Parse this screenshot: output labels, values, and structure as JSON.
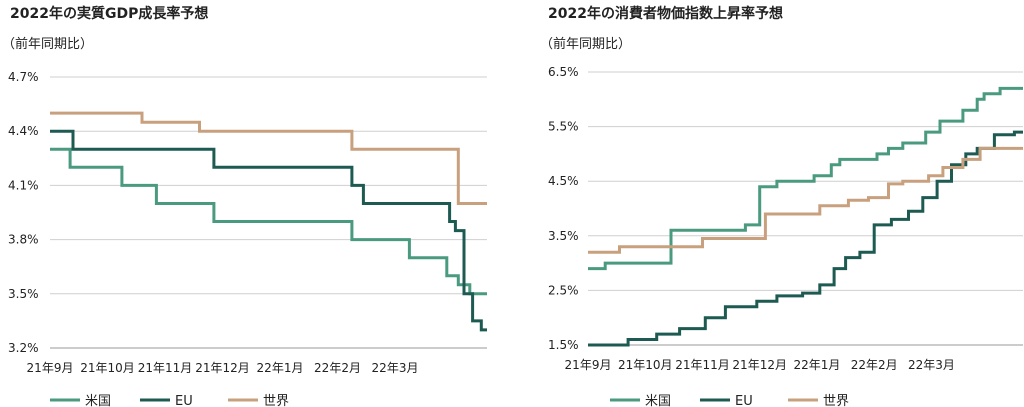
{
  "colors": {
    "us": "#4a9a80",
    "eu": "#1c5a52",
    "world": "#c8a07e",
    "grid": "#cfcfcf",
    "text": "#222222"
  },
  "chart_data": [
    {
      "type": "line",
      "title": "2022年の実質GDP成長率予想",
      "subtitle": "（前年同期比）",
      "x_tick_labels": [
        "21年9月",
        "21年10月",
        "21年11月",
        "21年12月",
        "22年1月",
        "22年2月",
        "22年3月"
      ],
      "y_ticks": [
        "3.2%",
        "3.5%",
        "3.8%",
        "4.1%",
        "4.4%",
        "4.7%"
      ],
      "ylim": [
        3.2,
        4.7
      ],
      "xlim": [
        0,
        7.6
      ],
      "grid": "horizontal",
      "legend_position": "bottom-left",
      "series": [
        {
          "name": "米国",
          "color_key": "us",
          "x": [
            0,
            0.35,
            0.35,
            1.25,
            1.25,
            1.85,
            1.85,
            2.85,
            2.85,
            5.25,
            5.25,
            6.25,
            6.25,
            6.9,
            6.9,
            7.1,
            7.1,
            7.3,
            7.3,
            7.6
          ],
          "y": [
            4.3,
            4.3,
            4.2,
            4.2,
            4.1,
            4.1,
            4.0,
            4.0,
            3.9,
            3.9,
            3.8,
            3.8,
            3.7,
            3.7,
            3.6,
            3.6,
            3.55,
            3.55,
            3.5,
            3.5
          ]
        },
        {
          "name": "EU",
          "color_key": "eu",
          "x": [
            0,
            0.4,
            0.4,
            2.85,
            2.85,
            5.25,
            5.25,
            5.45,
            5.45,
            6.95,
            6.95,
            7.05,
            7.05,
            7.2,
            7.2,
            7.35,
            7.35,
            7.5,
            7.5,
            7.6
          ],
          "y": [
            4.4,
            4.4,
            4.3,
            4.3,
            4.2,
            4.2,
            4.1,
            4.1,
            4.0,
            4.0,
            3.9,
            3.9,
            3.85,
            3.85,
            3.5,
            3.5,
            3.35,
            3.35,
            3.3,
            3.3
          ]
        },
        {
          "name": "世界",
          "color_key": "world",
          "x": [
            0,
            1.6,
            1.6,
            2.6,
            2.6,
            5.25,
            5.25,
            7.1,
            7.1,
            7.6
          ],
          "y": [
            4.5,
            4.5,
            4.45,
            4.45,
            4.4,
            4.4,
            4.3,
            4.3,
            4.0,
            4.0
          ]
        }
      ]
    },
    {
      "type": "line",
      "title": "2022年の消費者物価指数上昇率予想",
      "subtitle": "（前年同期比）",
      "x_tick_labels": [
        "21年9月",
        "21年10月",
        "21年11月",
        "21年12月",
        "22年1月",
        "22年2月",
        "22年3月"
      ],
      "y_ticks": [
        "1.5%",
        "2.5%",
        "3.5%",
        "4.5%",
        "5.5%",
        "6.5%"
      ],
      "ylim": [
        1.5,
        6.5
      ],
      "xlim": [
        0,
        7.6
      ],
      "grid": "horizontal",
      "legend_position": "bottom-left",
      "series": [
        {
          "name": "米国",
          "color_key": "us",
          "x": [
            0,
            0.3,
            0.3,
            1.45,
            1.45,
            2.75,
            2.75,
            3.0,
            3.0,
            3.3,
            3.3,
            3.95,
            3.95,
            4.25,
            4.25,
            4.4,
            4.4,
            5.05,
            5.05,
            5.25,
            5.25,
            5.5,
            5.5,
            5.9,
            5.9,
            6.15,
            6.15,
            6.55,
            6.55,
            6.8,
            6.8,
            6.92,
            6.92,
            7.2,
            7.2,
            7.6
          ],
          "y": [
            2.9,
            2.9,
            3.0,
            3.0,
            3.6,
            3.6,
            3.7,
            3.7,
            4.4,
            4.4,
            4.5,
            4.5,
            4.6,
            4.6,
            4.8,
            4.8,
            4.9,
            4.9,
            5.0,
            5.0,
            5.1,
            5.1,
            5.2,
            5.2,
            5.4,
            5.4,
            5.6,
            5.6,
            5.8,
            5.8,
            6.0,
            6.0,
            6.1,
            6.1,
            6.2,
            6.2
          ]
        },
        {
          "name": "EU",
          "color_key": "eu",
          "x": [
            0,
            0.7,
            0.7,
            1.2,
            1.2,
            1.6,
            1.6,
            2.05,
            2.05,
            2.4,
            2.4,
            2.95,
            2.95,
            3.3,
            3.3,
            3.75,
            3.75,
            4.05,
            4.05,
            4.3,
            4.3,
            4.5,
            4.5,
            4.75,
            4.75,
            5.0,
            5.0,
            5.3,
            5.3,
            5.6,
            5.6,
            5.85,
            5.85,
            6.1,
            6.1,
            6.35,
            6.35,
            6.6,
            6.6,
            6.8,
            6.8,
            7.1,
            7.1,
            7.45,
            7.45,
            7.6
          ],
          "y": [
            1.5,
            1.5,
            1.6,
            1.6,
            1.7,
            1.7,
            1.8,
            1.8,
            2.0,
            2.0,
            2.2,
            2.2,
            2.3,
            2.3,
            2.4,
            2.4,
            2.45,
            2.45,
            2.6,
            2.6,
            2.9,
            2.9,
            3.1,
            3.1,
            3.2,
            3.2,
            3.7,
            3.7,
            3.8,
            3.8,
            3.95,
            3.95,
            4.2,
            4.2,
            4.5,
            4.5,
            4.8,
            4.8,
            5.0,
            5.0,
            5.1,
            5.1,
            5.35,
            5.35,
            5.4,
            5.4
          ]
        },
        {
          "name": "世界",
          "color_key": "world",
          "x": [
            0,
            0.55,
            0.55,
            2.0,
            2.0,
            3.1,
            3.1,
            4.05,
            4.05,
            4.55,
            4.55,
            4.9,
            4.9,
            5.25,
            5.25,
            5.5,
            5.5,
            5.95,
            5.95,
            6.2,
            6.2,
            6.55,
            6.55,
            6.85,
            6.85,
            7.6
          ],
          "y": [
            3.2,
            3.2,
            3.3,
            3.3,
            3.45,
            3.45,
            3.9,
            3.9,
            4.05,
            4.05,
            4.15,
            4.15,
            4.2,
            4.2,
            4.45,
            4.45,
            4.5,
            4.5,
            4.6,
            4.6,
            4.75,
            4.75,
            4.9,
            4.9,
            5.1,
            5.1
          ]
        }
      ]
    }
  ]
}
